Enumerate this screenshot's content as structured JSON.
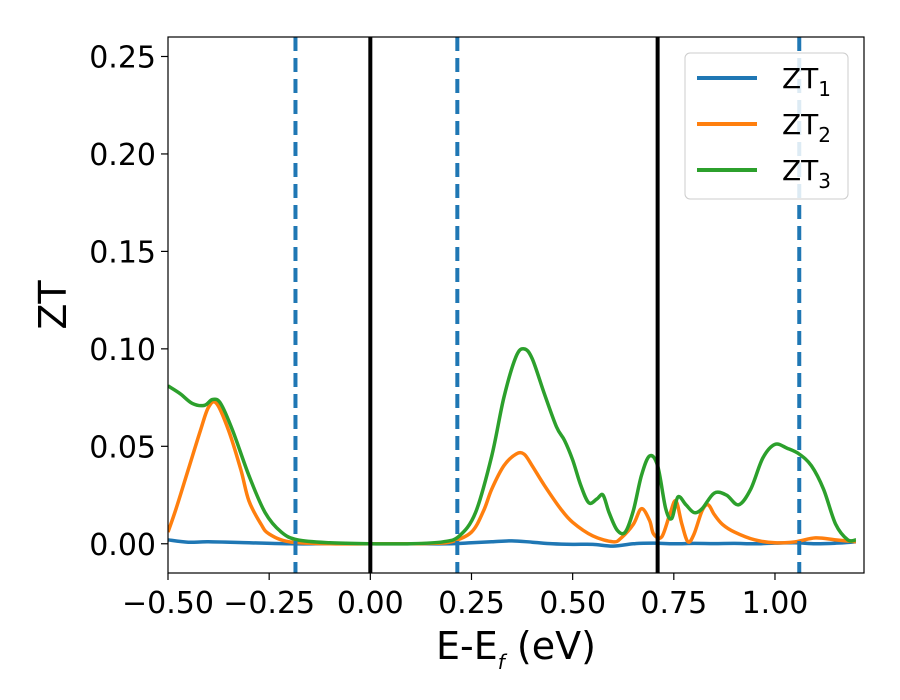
{
  "chart_data": {
    "type": "line",
    "title": "",
    "xlabel_main": "E-E",
    "xlabel_sub": "f",
    "xlabel_unit": " (eV)",
    "ylabel": "ZT",
    "xlim": [
      -0.5,
      1.22
    ],
    "ylim": [
      -0.015,
      0.26
    ],
    "xticks": [
      -0.5,
      -0.25,
      0.0,
      0.25,
      0.5,
      0.75,
      1.0
    ],
    "xtick_labels": [
      "−0.50",
      "−0.25",
      "0.00",
      "0.25",
      "0.50",
      "0.75",
      "1.00"
    ],
    "yticks": [
      0.0,
      0.05,
      0.1,
      0.15,
      0.2,
      0.25
    ],
    "ytick_labels": [
      "0.00",
      "0.05",
      "0.10",
      "0.15",
      "0.20",
      "0.25"
    ],
    "grid": false,
    "legend_position": "top-right",
    "vlines_solid": [
      0.0,
      0.71
    ],
    "vlines_dashed": [
      -0.185,
      0.215,
      1.06
    ],
    "vline_solid_color": "#000000",
    "vline_dashed_color": "#1f77b4",
    "series": [
      {
        "name": "ZT",
        "subscript": "1",
        "color": "#1f77b4",
        "x": [
          -0.5,
          -0.45,
          -0.4,
          -0.3,
          -0.2,
          -0.1,
          0.0,
          0.1,
          0.2,
          0.25,
          0.3,
          0.35,
          0.4,
          0.45,
          0.5,
          0.55,
          0.6,
          0.65,
          0.7,
          0.75,
          0.8,
          0.85,
          0.9,
          0.95,
          1.0,
          1.05,
          1.1,
          1.15,
          1.2
        ],
        "y": [
          0.002,
          0.0008,
          0.001,
          0.0005,
          0.0,
          0.0,
          0.0,
          0.0,
          0.0,
          0.0005,
          0.001,
          0.0015,
          0.0008,
          0.0,
          -0.0003,
          -0.0003,
          -0.0012,
          0.0,
          0.0003,
          0.0,
          0.0002,
          0.0001,
          0.0002,
          0.0,
          0.0003,
          0.0005,
          0.0,
          0.0003,
          0.001
        ]
      },
      {
        "name": "ZT",
        "subscript": "2",
        "color": "#ff7f0e",
        "x": [
          -0.5,
          -0.48,
          -0.45,
          -0.42,
          -0.4,
          -0.38,
          -0.35,
          -0.32,
          -0.3,
          -0.27,
          -0.25,
          -0.2,
          -0.1,
          0.0,
          0.1,
          0.15,
          0.2,
          0.25,
          0.28,
          0.3,
          0.33,
          0.36,
          0.38,
          0.4,
          0.43,
          0.47,
          0.5,
          0.55,
          0.6,
          0.62,
          0.65,
          0.67,
          0.69,
          0.7,
          0.72,
          0.74,
          0.755,
          0.77,
          0.785,
          0.8,
          0.82,
          0.835,
          0.85,
          0.87,
          0.9,
          0.95,
          1.0,
          1.05,
          1.1,
          1.15,
          1.2
        ],
        "y": [
          0.006,
          0.018,
          0.038,
          0.058,
          0.07,
          0.072,
          0.058,
          0.038,
          0.022,
          0.01,
          0.005,
          0.001,
          0.0,
          0.0,
          0.0,
          0.0002,
          0.001,
          0.006,
          0.017,
          0.028,
          0.04,
          0.046,
          0.046,
          0.04,
          0.03,
          0.018,
          0.011,
          0.004,
          0.001,
          0.003,
          0.01,
          0.018,
          0.012,
          0.005,
          0.0035,
          0.015,
          0.022,
          0.01,
          0.001,
          0.005,
          0.017,
          0.02,
          0.015,
          0.01,
          0.006,
          0.002,
          0.0005,
          0.001,
          0.003,
          0.002,
          0.001
        ]
      },
      {
        "name": "ZT",
        "subscript": "3",
        "color": "#2ca02c",
        "x": [
          -0.5,
          -0.47,
          -0.44,
          -0.41,
          -0.39,
          -0.37,
          -0.34,
          -0.3,
          -0.26,
          -0.22,
          -0.18,
          -0.1,
          0.0,
          0.1,
          0.18,
          0.22,
          0.26,
          0.3,
          0.33,
          0.36,
          0.38,
          0.4,
          0.43,
          0.46,
          0.48,
          0.5,
          0.52,
          0.54,
          0.56,
          0.575,
          0.59,
          0.61,
          0.63,
          0.65,
          0.67,
          0.69,
          0.71,
          0.73,
          0.745,
          0.76,
          0.78,
          0.8,
          0.82,
          0.85,
          0.88,
          0.91,
          0.94,
          0.97,
          1.0,
          1.03,
          1.06,
          1.09,
          1.12,
          1.15,
          1.18,
          1.2
        ],
        "y": [
          0.081,
          0.077,
          0.072,
          0.071,
          0.074,
          0.072,
          0.058,
          0.035,
          0.016,
          0.006,
          0.002,
          0.0005,
          0.0,
          0.0,
          0.001,
          0.004,
          0.016,
          0.045,
          0.075,
          0.096,
          0.1,
          0.095,
          0.077,
          0.06,
          0.053,
          0.043,
          0.03,
          0.021,
          0.023,
          0.025,
          0.016,
          0.007,
          0.006,
          0.017,
          0.035,
          0.045,
          0.04,
          0.018,
          0.013,
          0.024,
          0.02,
          0.016,
          0.018,
          0.026,
          0.025,
          0.02,
          0.028,
          0.044,
          0.051,
          0.049,
          0.046,
          0.04,
          0.028,
          0.01,
          0.002,
          0.002
        ]
      }
    ]
  }
}
